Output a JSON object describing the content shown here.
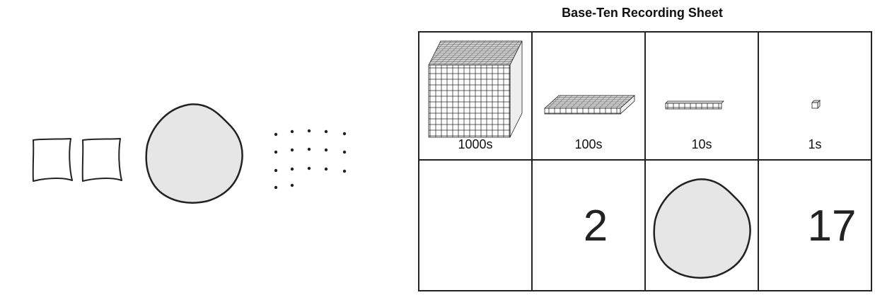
{
  "title": "Base-Ten Recording Sheet",
  "table": {
    "columns": [
      {
        "label": "1000s"
      },
      {
        "label": "100s",
        "count": "2"
      },
      {
        "label": "10s"
      },
      {
        "label": "1s",
        "count": "17"
      }
    ]
  }
}
